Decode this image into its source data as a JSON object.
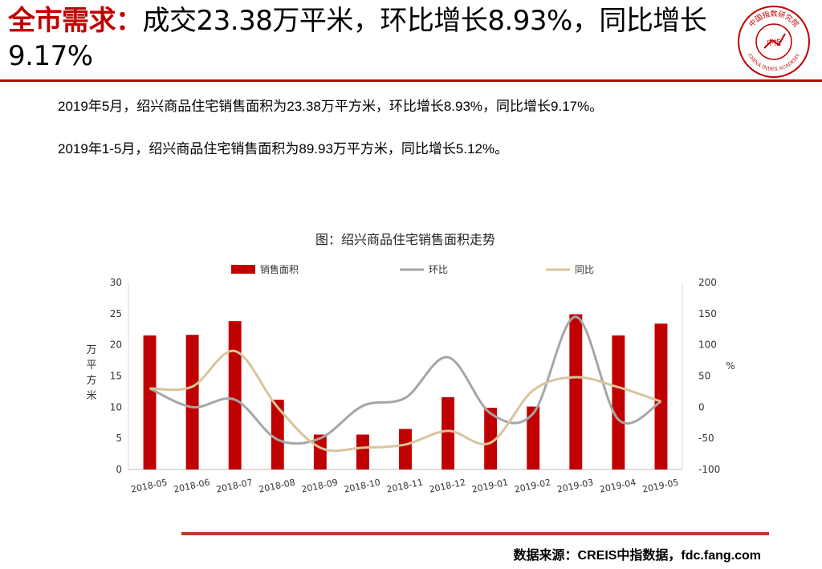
{
  "slide": {
    "title_accent": "全市需求：",
    "title_rest": "成交23.38万平米，环比增长8.93%，同比增长9.17%",
    "logo_text": "中国指数研究院",
    "logo_text_en": "CHINA INDEX ACADEMY",
    "logo_center": "中指",
    "line1": "2019年5月，绍兴商品住宅销售面积为23.38万平方米，环比增长8.93%，同比增长9.17%。",
    "line2": "2019年1-5月，绍兴商品住宅销售面积为89.93万平方米，同比增长5.12%。",
    "source": "数据来源：CREIS中指数据，fdc.fang.com",
    "accent_color": "#c00000"
  },
  "chart_data": {
    "type": "bar",
    "title": "图：绍兴商品住宅销售面积走势",
    "categories": [
      "2018-05",
      "2018-06",
      "2018-07",
      "2018-08",
      "2018-09",
      "2018-10",
      "2018-11",
      "2018-12",
      "2019-01",
      "2019-02",
      "2019-03",
      "2019-04",
      "2019-05"
    ],
    "series": [
      {
        "name": "销售面积",
        "type": "bar",
        "axis": "left",
        "color": "#c00000",
        "values": [
          21.5,
          21.6,
          23.8,
          11.2,
          5.6,
          5.6,
          6.5,
          11.6,
          9.9,
          10.1,
          24.9,
          21.5,
          23.4
        ]
      },
      {
        "name": "环比",
        "type": "line",
        "axis": "right",
        "color": "#a6a6a6",
        "values": [
          30,
          0,
          12,
          -52,
          -50,
          2,
          15,
          80,
          -10,
          -10,
          145,
          -20,
          9
        ]
      },
      {
        "name": "同比",
        "type": "line",
        "axis": "right",
        "color": "#d9c49b",
        "values": [
          30,
          33,
          90,
          0,
          -65,
          -65,
          -60,
          -38,
          -57,
          27,
          48,
          32,
          9
        ]
      }
    ],
    "ylabel": "万平方米",
    "y2label": "%",
    "ylim": [
      0,
      30
    ],
    "yticks": [
      0,
      5,
      10,
      15,
      20,
      25,
      30
    ],
    "y2lim": [
      -100,
      200
    ],
    "y2ticks": [
      -100,
      -50,
      0,
      50,
      100,
      150,
      200
    ],
    "legend_position": "top",
    "grid": false
  }
}
